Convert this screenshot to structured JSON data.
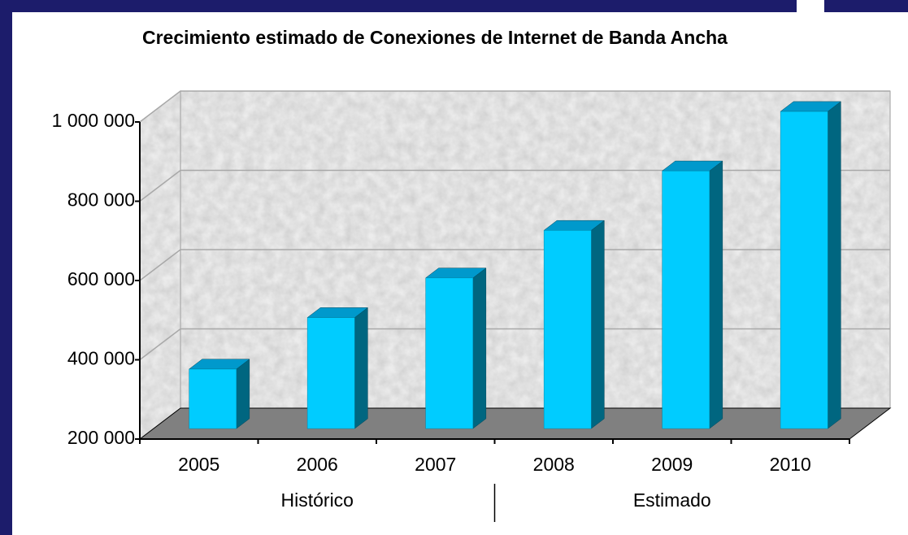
{
  "chart_data": {
    "type": "bar3d",
    "title": "Crecimiento estimado de Conexiones de Internet de Banda Ancha",
    "categories": [
      "2005",
      "2006",
      "2007",
      "2008",
      "2009",
      "2010"
    ],
    "group_labels": [
      "Histórico",
      "Estimado"
    ],
    "values": [
      350000,
      480000,
      580000,
      700000,
      850000,
      1000000
    ],
    "color": "#00ccff",
    "ylim": [
      200000,
      1000000
    ],
    "yticks": [
      {
        "value": 200000,
        "label": "200 000"
      },
      {
        "value": 400000,
        "label": "400 000"
      },
      {
        "value": 600000,
        "label": "600 000"
      },
      {
        "value": 800000,
        "label": "800 000"
      },
      {
        "value": 1000000,
        "label": "1 000 000"
      }
    ],
    "grid": true
  }
}
